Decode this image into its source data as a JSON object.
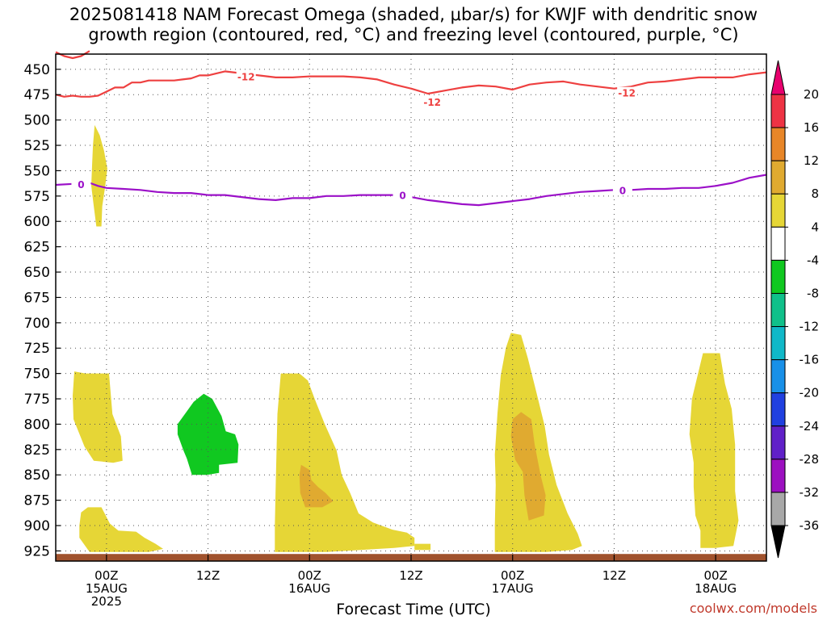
{
  "title_line1": "2025081418 NAM Forecast Omega (shaded, μbar/s) for KWJF with dendritic snow",
  "title_line2": "growth region (contoured, red, °C) and freezing level (contoured, purple, °C)",
  "credit": "coolwx.com/models",
  "chart_data": {
    "type": "heatmap",
    "xlabel": "Forecast Time (UTC)",
    "ylabel": "",
    "x_ticks": [
      {
        "hour": 6,
        "lines": [
          "00Z",
          "15AUG",
          "2025"
        ]
      },
      {
        "hour": 18,
        "lines": [
          "12Z"
        ]
      },
      {
        "hour": 30,
        "lines": [
          "00Z",
          "16AUG"
        ]
      },
      {
        "hour": 42,
        "lines": [
          "12Z"
        ]
      },
      {
        "hour": 54,
        "lines": [
          "00Z",
          "17AUG"
        ]
      },
      {
        "hour": 66,
        "lines": [
          "12Z"
        ]
      },
      {
        "hour": 78,
        "lines": [
          "00Z",
          "18AUG"
        ]
      }
    ],
    "xlim": [
      0,
      84
    ],
    "ylim": [
      435,
      935
    ],
    "y_ticks": [
      450,
      475,
      500,
      525,
      550,
      575,
      600,
      625,
      650,
      675,
      700,
      725,
      750,
      775,
      800,
      825,
      850,
      875,
      900,
      925
    ],
    "colorbar": {
      "labels": [
        "20",
        "16",
        "12",
        "8",
        "4",
        "-4",
        "-8",
        "-12",
        "-16",
        "-20",
        "-24",
        "-28",
        "-32",
        "-36"
      ],
      "colors": [
        "#ee3344",
        "#e88628",
        "#e0aa30",
        "#e6d636",
        "#ffffff",
        "#10c820",
        "#10c08a",
        "#10b8c8",
        "#1890e8",
        "#2040e0",
        "#6020c8",
        "#9c10c0",
        "#a8a8a8"
      ],
      "top_arrow_color": "#e8006e",
      "bottom_arrow_color": "#000000"
    },
    "contours": [
      {
        "name": "-12",
        "color": "#ee4040",
        "labels": [
          {
            "x": 22.5,
            "y": 457
          },
          {
            "x": 44.5,
            "y": 482
          },
          {
            "x": 67.5,
            "y": 473
          }
        ],
        "points": [
          [
            0,
            475
          ],
          [
            1,
            477
          ],
          [
            2,
            476
          ],
          [
            3,
            477
          ],
          [
            4,
            477
          ],
          [
            5,
            476
          ],
          [
            6,
            472
          ],
          [
            7,
            468
          ],
          [
            8,
            468
          ],
          [
            9,
            463
          ],
          [
            10,
            463
          ],
          [
            11,
            461
          ],
          [
            12,
            461
          ],
          [
            13,
            461
          ],
          [
            14,
            461
          ],
          [
            15,
            460
          ],
          [
            16,
            459
          ],
          [
            17,
            456
          ],
          [
            18,
            456
          ],
          [
            19,
            454
          ],
          [
            20,
            452
          ],
          [
            22,
            454
          ],
          [
            24,
            456
          ],
          [
            26,
            458
          ],
          [
            28,
            458
          ],
          [
            30,
            457
          ],
          [
            32,
            457
          ],
          [
            34,
            457
          ],
          [
            36,
            458
          ],
          [
            38,
            460
          ],
          [
            40,
            465
          ],
          [
            42,
            469
          ],
          [
            44,
            474
          ],
          [
            46,
            471
          ],
          [
            48,
            468
          ],
          [
            50,
            466
          ],
          [
            52,
            467
          ],
          [
            54,
            470
          ],
          [
            56,
            465
          ],
          [
            58,
            463
          ],
          [
            60,
            462
          ],
          [
            62,
            465
          ],
          [
            64,
            467
          ],
          [
            66,
            469
          ],
          [
            68,
            467
          ],
          [
            70,
            463
          ],
          [
            72,
            462
          ],
          [
            74,
            460
          ],
          [
            76,
            458
          ],
          [
            78,
            458
          ],
          [
            80,
            458
          ],
          [
            82,
            455
          ],
          [
            84,
            453
          ]
        ]
      },
      {
        "name": "-12",
        "color": "#ee4040",
        "labels": [],
        "points": [
          [
            0,
            433
          ],
          [
            1,
            437
          ],
          [
            2,
            439
          ],
          [
            3,
            437
          ],
          [
            4,
            432
          ]
        ]
      },
      {
        "name": "0",
        "color": "#9b10c8",
        "labels": [
          {
            "x": 3,
            "y": 563
          },
          {
            "x": 41,
            "y": 574
          },
          {
            "x": 67,
            "y": 569
          }
        ],
        "points": [
          [
            0,
            564
          ],
          [
            2,
            563
          ],
          [
            4,
            562
          ],
          [
            5,
            565
          ],
          [
            6,
            567
          ],
          [
            8,
            568
          ],
          [
            10,
            569
          ],
          [
            12,
            571
          ],
          [
            14,
            572
          ],
          [
            16,
            572
          ],
          [
            18,
            574
          ],
          [
            20,
            574
          ],
          [
            22,
            576
          ],
          [
            24,
            578
          ],
          [
            26,
            579
          ],
          [
            28,
            577
          ],
          [
            30,
            577
          ],
          [
            32,
            575
          ],
          [
            34,
            575
          ],
          [
            36,
            574
          ],
          [
            38,
            574
          ],
          [
            40,
            574
          ],
          [
            42,
            576
          ],
          [
            44,
            579
          ],
          [
            46,
            581
          ],
          [
            48,
            583
          ],
          [
            50,
            584
          ],
          [
            52,
            582
          ],
          [
            54,
            580
          ],
          [
            56,
            578
          ],
          [
            58,
            575
          ],
          [
            60,
            573
          ],
          [
            62,
            571
          ],
          [
            64,
            570
          ],
          [
            66,
            569
          ],
          [
            68,
            569
          ],
          [
            70,
            568
          ],
          [
            72,
            568
          ],
          [
            74,
            567
          ],
          [
            76,
            567
          ],
          [
            78,
            565
          ],
          [
            80,
            562
          ],
          [
            82,
            557
          ],
          [
            84,
            554
          ]
        ]
      }
    ],
    "shaded": [
      {
        "level": "4-8",
        "color": "#e6d636",
        "points": [
          [
            4.6,
            505
          ],
          [
            5.2,
            515
          ],
          [
            5.7,
            530
          ],
          [
            6.1,
            548
          ],
          [
            5.8,
            568
          ],
          [
            5.5,
            585
          ],
          [
            5.4,
            605
          ],
          [
            4.8,
            605
          ],
          [
            4.5,
            585
          ],
          [
            4.2,
            565
          ],
          [
            4.3,
            545
          ],
          [
            4.4,
            525
          ],
          [
            4.6,
            505
          ]
        ]
      },
      {
        "level": "4-8",
        "color": "#e6d636",
        "points": [
          [
            2.2,
            748
          ],
          [
            3.5,
            750
          ],
          [
            5.4,
            750
          ],
          [
            6.3,
            750
          ],
          [
            6.7,
            790
          ],
          [
            7.7,
            812
          ],
          [
            7.9,
            836
          ],
          [
            6.8,
            838
          ],
          [
            4.5,
            836
          ],
          [
            3.4,
            822
          ],
          [
            2.1,
            795
          ],
          [
            2.0,
            772
          ],
          [
            2.2,
            748
          ]
        ]
      },
      {
        "level": "4-8",
        "color": "#e6d636",
        "points": [
          [
            2.8,
            900
          ],
          [
            3.0,
            887
          ],
          [
            3.8,
            882
          ],
          [
            5.4,
            882
          ],
          [
            6.4,
            898
          ],
          [
            7.4,
            905
          ],
          [
            9.5,
            906
          ],
          [
            10.5,
            912
          ],
          [
            11.8,
            918
          ],
          [
            12.7,
            923
          ],
          [
            11.0,
            926
          ],
          [
            8.0,
            926
          ],
          [
            4.0,
            926
          ],
          [
            2.8,
            912
          ],
          [
            2.8,
            900
          ]
        ]
      },
      {
        "level": "-4-8",
        "color": "#10c820",
        "points": [
          [
            16.3,
            778
          ],
          [
            17.5,
            770
          ],
          [
            18.5,
            775
          ],
          [
            19.6,
            792
          ],
          [
            20.1,
            807
          ],
          [
            21.2,
            810
          ],
          [
            21.6,
            820
          ],
          [
            21.5,
            838
          ],
          [
            19.3,
            840
          ],
          [
            19.3,
            848
          ],
          [
            17.9,
            850
          ],
          [
            16.1,
            850
          ],
          [
            15.5,
            834
          ],
          [
            15.1,
            826
          ],
          [
            14.4,
            810
          ],
          [
            14.4,
            800
          ],
          [
            16.3,
            778
          ]
        ]
      },
      {
        "level": "4-8",
        "color": "#e6d636",
        "points": [
          [
            26.6,
            750
          ],
          [
            28.8,
            750
          ],
          [
            29.8,
            757
          ],
          [
            30.6,
            775
          ],
          [
            31.8,
            800
          ],
          [
            33.2,
            826
          ],
          [
            33.8,
            850
          ],
          [
            34.8,
            868
          ],
          [
            35.8,
            888
          ],
          [
            37.5,
            897
          ],
          [
            39.8,
            904
          ],
          [
            41.5,
            907
          ],
          [
            42.4,
            912
          ],
          [
            42.4,
            920
          ],
          [
            40.0,
            922
          ],
          [
            36.0,
            924
          ],
          [
            32.0,
            926
          ],
          [
            28.0,
            926
          ],
          [
            25.9,
            926
          ],
          [
            25.9,
            900
          ],
          [
            26.0,
            860
          ],
          [
            26.2,
            790
          ],
          [
            26.6,
            750
          ]
        ]
      },
      {
        "level": "8-12",
        "color": "#e0aa30",
        "points": [
          [
            29.0,
            840
          ],
          [
            30.0,
            845
          ],
          [
            30.2,
            855
          ],
          [
            31.0,
            862
          ],
          [
            31.9,
            868
          ],
          [
            32.8,
            876
          ],
          [
            31.5,
            882
          ],
          [
            29.5,
            882
          ],
          [
            28.9,
            868
          ],
          [
            28.8,
            850
          ],
          [
            29.0,
            840
          ]
        ]
      },
      {
        "level": "4-8",
        "color": "#e6d636",
        "points": [
          [
            42.4,
            918
          ],
          [
            44.3,
            918
          ],
          [
            44.3,
            924
          ],
          [
            42.4,
            924
          ],
          [
            42.4,
            918
          ]
        ]
      },
      {
        "level": "4-8",
        "color": "#e6d636",
        "points": [
          [
            53.8,
            710
          ],
          [
            55.0,
            712
          ],
          [
            55.8,
            735
          ],
          [
            56.8,
            768
          ],
          [
            57.8,
            802
          ],
          [
            58.3,
            830
          ],
          [
            59.2,
            860
          ],
          [
            60.5,
            888
          ],
          [
            61.7,
            908
          ],
          [
            62.2,
            920
          ],
          [
            61.0,
            924
          ],
          [
            58.0,
            926
          ],
          [
            55.0,
            926
          ],
          [
            51.9,
            926
          ],
          [
            51.9,
            900
          ],
          [
            52.0,
            860
          ],
          [
            51.9,
            830
          ],
          [
            52.2,
            790
          ],
          [
            52.6,
            752
          ],
          [
            53.2,
            725
          ],
          [
            53.8,
            710
          ]
        ]
      },
      {
        "level": "8-12",
        "color": "#e0aa30",
        "points": [
          [
            55.0,
            788
          ],
          [
            56.2,
            795
          ],
          [
            56.6,
            820
          ],
          [
            57.3,
            850
          ],
          [
            57.9,
            870
          ],
          [
            57.7,
            890
          ],
          [
            55.9,
            895
          ],
          [
            55.4,
            870
          ],
          [
            55.2,
            847
          ],
          [
            54.3,
            835
          ],
          [
            53.8,
            812
          ],
          [
            54.0,
            795
          ],
          [
            55.0,
            788
          ]
        ]
      },
      {
        "level": "4-8",
        "color": "#e6d636",
        "points": [
          [
            76.5,
            730
          ],
          [
            78.5,
            730
          ],
          [
            79.1,
            760
          ],
          [
            79.9,
            785
          ],
          [
            80.3,
            820
          ],
          [
            80.3,
            866
          ],
          [
            80.7,
            895
          ],
          [
            80.1,
            920
          ],
          [
            78.0,
            922
          ],
          [
            76.2,
            922
          ],
          [
            76.2,
            905
          ],
          [
            75.6,
            890
          ],
          [
            75.4,
            862
          ],
          [
            75.4,
            838
          ],
          [
            74.9,
            810
          ],
          [
            75.2,
            775
          ],
          [
            76.5,
            730
          ]
        ]
      }
    ],
    "ground": {
      "color": "#a0522d",
      "from": 928,
      "to": 935
    }
  }
}
